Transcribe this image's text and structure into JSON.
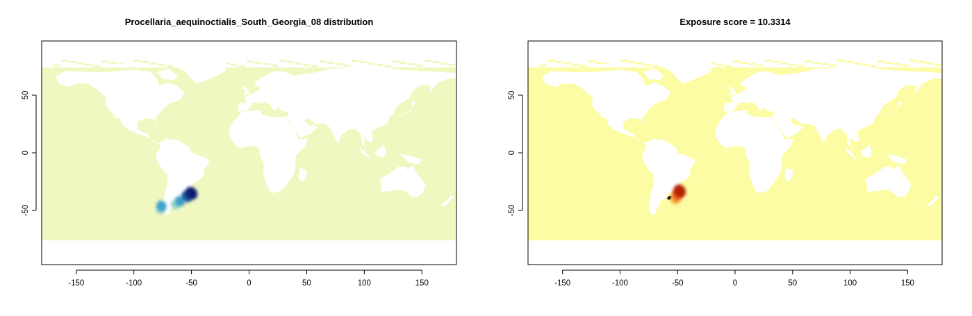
{
  "chart_data": [
    {
      "type": "heatmap",
      "title": "Procellaria_aequinoctialis_South_Georgia_08 distribution",
      "xlabel": "",
      "ylabel": "",
      "xlim": [
        -180,
        180
      ],
      "ylim": [
        -97,
        97
      ],
      "x_ticks": [
        -150,
        -100,
        -50,
        0,
        50,
        100,
        150
      ],
      "y_ticks": [
        50,
        0,
        -50
      ],
      "ocean_color": "#f1f7c0",
      "hotspot_colors": [
        "#0b1e70",
        "#1d58a0",
        "#3aa3c8",
        "#8fd0c8"
      ],
      "hotspots": [
        {
          "lon": -50,
          "lat": -35,
          "level": 0
        },
        {
          "lon": -54,
          "lat": -38,
          "level": 1
        },
        {
          "lon": -60,
          "lat": -42,
          "level": 2
        },
        {
          "lon": -64,
          "lat": -45,
          "level": 3
        },
        {
          "lon": -76,
          "lat": -46,
          "level": 2
        },
        {
          "lon": -77,
          "lat": -49,
          "level": 3
        }
      ]
    },
    {
      "type": "heatmap",
      "title": "Exposure score = 10.3314",
      "xlabel": "",
      "ylabel": "",
      "xlim": [
        -180,
        180
      ],
      "ylim": [
        -97,
        97
      ],
      "x_ticks": [
        -150,
        -100,
        -50,
        0,
        50,
        100,
        150
      ],
      "y_ticks": [
        50,
        0,
        -50
      ],
      "ocean_color": "#fcfca4",
      "hotspot_colors": [
        "#b22306",
        "#e2531a",
        "#f7a037",
        "#000000"
      ],
      "hotspots": [
        {
          "lon": -48,
          "lat": -33,
          "level": 0
        },
        {
          "lon": -50,
          "lat": -36,
          "level": 1
        },
        {
          "lon": -52,
          "lat": -40,
          "level": 2
        },
        {
          "lon": -57,
          "lat": -39,
          "level": 3
        }
      ]
    }
  ]
}
